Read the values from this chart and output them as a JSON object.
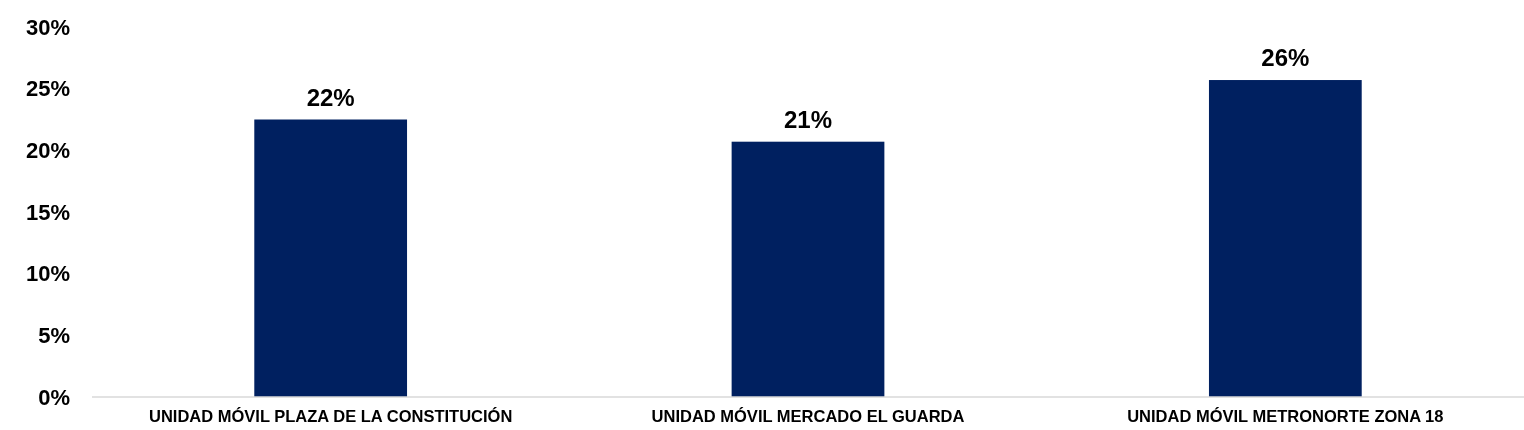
{
  "chart_data": {
    "type": "bar",
    "categories": [
      "UNIDAD MÓVIL PLAZA DE LA CONSTITUCIÓN",
      "UNIDAD MÓVIL MERCADO EL GUARDA",
      "UNIDAD MÓVIL METRONORTE ZONA 18"
    ],
    "values": [
      22.5,
      20.7,
      25.7
    ],
    "value_labels": [
      "22%",
      "21%",
      "26%"
    ],
    "color": "#002060",
    "ylim": [
      0,
      30
    ],
    "yticks": [
      {
        "value": 0,
        "label": "0%"
      },
      {
        "value": 5,
        "label": "5%"
      },
      {
        "value": 10,
        "label": "10%"
      },
      {
        "value": 15,
        "label": "15%"
      },
      {
        "value": 20,
        "label": "20%"
      },
      {
        "value": 25,
        "label": "25%"
      },
      {
        "value": 30,
        "label": "30%"
      }
    ],
    "tick_labels": true
  }
}
